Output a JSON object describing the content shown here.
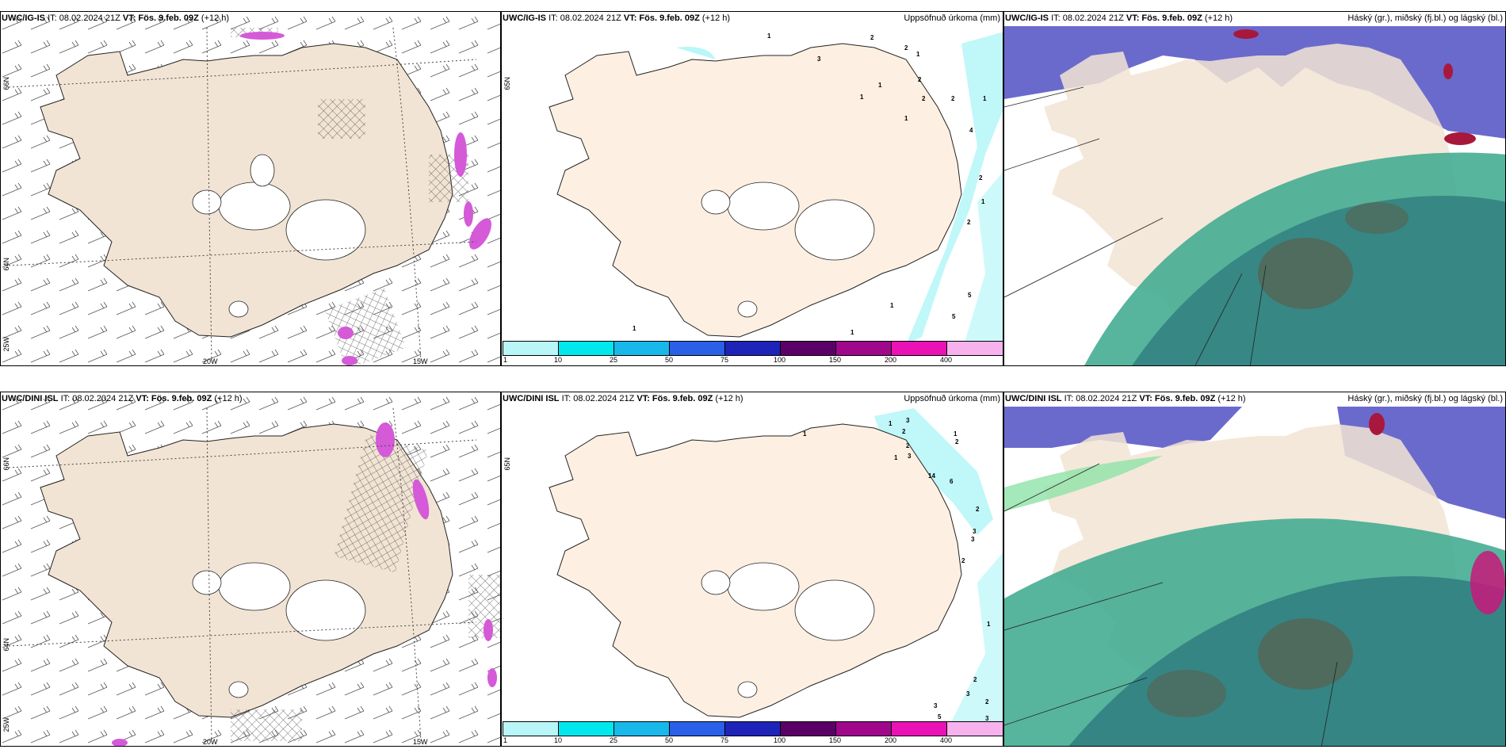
{
  "rows": [
    {
      "panels": [
        {
          "type": "wind",
          "model": "UWC/IG-IS",
          "it": "IT: 08.02.2024 21Z",
          "vt_label": "VT:",
          "vt": "Fös. 9.feb. 09Z",
          "lead": "(+12 h)",
          "right": "",
          "lat_labels": [
            "66N",
            "64N",
            "25W"
          ],
          "lon_labels": [
            "20W",
            "15W"
          ]
        },
        {
          "type": "precip",
          "model": "UWC/IG-IS",
          "it": "IT: 08.02.2024 21Z",
          "vt_label": "VT:",
          "vt": "Fös. 9.feb. 09Z",
          "lead": "(+12 h)",
          "right": "Uppsöfnuð úrkoma (mm)",
          "lat_labels": [
            "65N"
          ],
          "cbar_labels": [
            "1",
            "10",
            "25",
            "50",
            "75",
            "100",
            "150",
            "200",
            "400"
          ]
        },
        {
          "type": "cloud",
          "model": "UWC/IG-IS",
          "it": "IT: 08.02.2024 21Z",
          "vt_label": "VT:",
          "vt": "Fös. 9.feb. 09Z",
          "lead": "(+12 h)",
          "right": "Háský (gr.), miðský (fj.bl.) og lágský (bl.)"
        }
      ]
    },
    {
      "panels": [
        {
          "type": "wind",
          "model": "UWC/DINI ISL",
          "it": "IT: 08.02.2024 21Z",
          "vt_label": "VT:",
          "vt": "Fös. 9.feb. 09Z",
          "lead": "(+12 h)",
          "right": "",
          "lat_labels": [
            "66N",
            "64N",
            "25W"
          ],
          "lon_labels": [
            "20W",
            "15W"
          ]
        },
        {
          "type": "precip",
          "model": "UWC/DINI ISL",
          "it": "IT: 08.02.2024 21Z",
          "vt_label": "VT:",
          "vt": "Fös. 9.feb. 09Z",
          "lead": "(+12 h)",
          "right": "Uppsöfnuð úrkoma (mm)",
          "lat_labels": [
            "65N"
          ],
          "cbar_labels": [
            "1",
            "10",
            "25",
            "50",
            "75",
            "100",
            "150",
            "200",
            "400"
          ]
        },
        {
          "type": "cloud",
          "model": "UWC/DINI ISL",
          "it": "IT: 08.02.2024 21Z",
          "vt_label": "VT:",
          "vt": "Fös. 9.feb. 09Z",
          "lead": "(+12 h)",
          "right": "Háský (gr.), miðský (fj.bl.) og lágský (bl.)"
        }
      ]
    }
  ],
  "colors": {
    "land": "#f2e4d4",
    "land_precip": "#fdf0e2",
    "precip_cbar": [
      "#b9f6f8",
      "#00e8ee",
      "#18b8ea",
      "#2a5fe8",
      "#1f24b8",
      "#5b0067",
      "#a0088c",
      "#ea12b6",
      "#f7b2ee"
    ],
    "high_cloud": "#5a5ac8",
    "mid_cloud": "#3aa88c",
    "low_cloud": "#2f7c80",
    "storm": "#c8187a"
  },
  "precip_marks": {
    "top": [
      "1",
      "2",
      "3",
      "2",
      "1",
      "1",
      "1",
      "2",
      "2",
      "2",
      "1",
      "4",
      "1",
      "2",
      "1",
      "2",
      "5",
      "1",
      "5",
      "1",
      "1"
    ],
    "bottom": [
      "1",
      "1",
      "3",
      "2",
      "2",
      "3",
      "1",
      "1",
      "2",
      "14",
      "6",
      "2",
      "3",
      "3",
      "2",
      "1",
      "2",
      "3",
      "2",
      "3",
      "5",
      "3"
    ]
  }
}
